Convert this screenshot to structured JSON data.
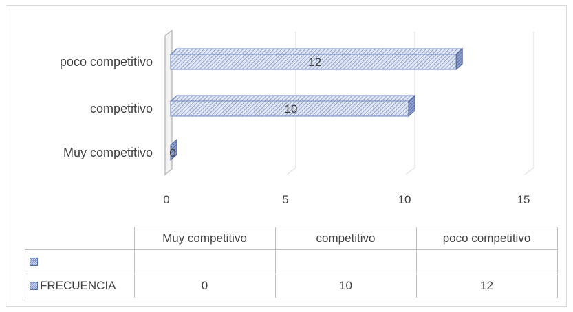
{
  "chart_data": {
    "type": "bar",
    "orientation": "horizontal",
    "categories": [
      "Muy competitivo",
      "competitivo",
      "poco competitivo"
    ],
    "series": [
      {
        "name": "FRECUENCIA",
        "values": [
          0,
          10,
          12
        ]
      }
    ],
    "data_labels": [
      "0",
      "10",
      "12"
    ],
    "x_ticks": [
      "0",
      "5",
      "10",
      "15"
    ],
    "xlim": [
      0,
      15
    ],
    "grid": true,
    "pattern": "diagonal hatch",
    "color": "#6f86bd",
    "data_table": {
      "columns": [
        "Muy competitivo",
        "competitivo",
        "poco competitivo"
      ],
      "rows": [
        {
          "label": "",
          "values": [
            "",
            "",
            ""
          ]
        },
        {
          "label": "FRECUENCIA",
          "values": [
            "0",
            "10",
            "12"
          ]
        }
      ]
    }
  }
}
